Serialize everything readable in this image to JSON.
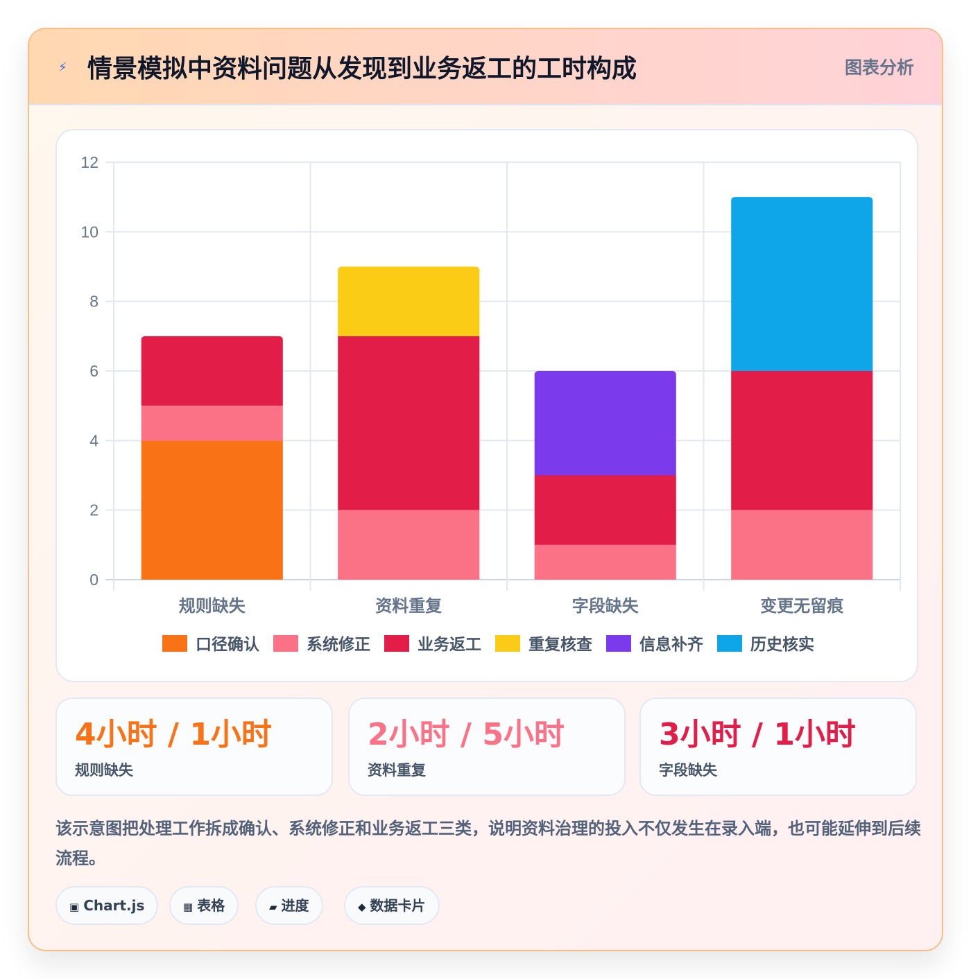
{
  "header": {
    "icon": "lightning-icon",
    "title": "情景模拟中资料问题从发现到业务返工的工时构成",
    "tag": "图表分析"
  },
  "chart_data": {
    "type": "bar",
    "stacked": true,
    "categories": [
      "规则缺失",
      "资料重复",
      "字段缺失",
      "变更无留痕"
    ],
    "series": [
      {
        "name": "口径确认",
        "color": "#f97316",
        "values": [
          4,
          0,
          0,
          0
        ]
      },
      {
        "name": "系统修正",
        "color": "#fb7185",
        "values": [
          1,
          2,
          1,
          2
        ]
      },
      {
        "name": "业务返工",
        "color": "#e11d48",
        "values": [
          2,
          5,
          2,
          4
        ]
      },
      {
        "name": "重复核查",
        "color": "#facc15",
        "values": [
          0,
          2,
          0,
          0
        ]
      },
      {
        "name": "信息补齐",
        "color": "#7c3aed",
        "values": [
          0,
          0,
          3,
          0
        ]
      },
      {
        "name": "历史核实",
        "color": "#0ea5e9",
        "values": [
          0,
          0,
          0,
          5
        ]
      }
    ],
    "ylim": [
      0,
      12
    ],
    "yticks": [
      0,
      2,
      4,
      6,
      8,
      10,
      12
    ],
    "grid": true,
    "legend": "bottom",
    "xlabel": "",
    "ylabel": ""
  },
  "stats": [
    {
      "value": "4小时 / 1小时",
      "label": "规则缺失",
      "color": "#f97316"
    },
    {
      "value": "2小时 / 5小时",
      "label": "资料重复",
      "color": "#fb7185"
    },
    {
      "value": "3小时 / 1小时",
      "label": "字段缺失",
      "color": "#e11d48"
    }
  ],
  "description": "该示意图把处理工作拆成确认、系统修正和业务返工三类，说明资料治理的投入不仅发生在录入端，也可能延伸到后续流程。",
  "chips": [
    {
      "icon": "chart-icon",
      "glyph": "▣",
      "label": "Chart.js"
    },
    {
      "icon": "table-icon",
      "glyph": "▦",
      "label": "表格"
    },
    {
      "icon": "progress-icon",
      "glyph": "▰",
      "label": "进度"
    },
    {
      "icon": "card-icon",
      "glyph": "◆",
      "label": "数据卡片"
    }
  ]
}
